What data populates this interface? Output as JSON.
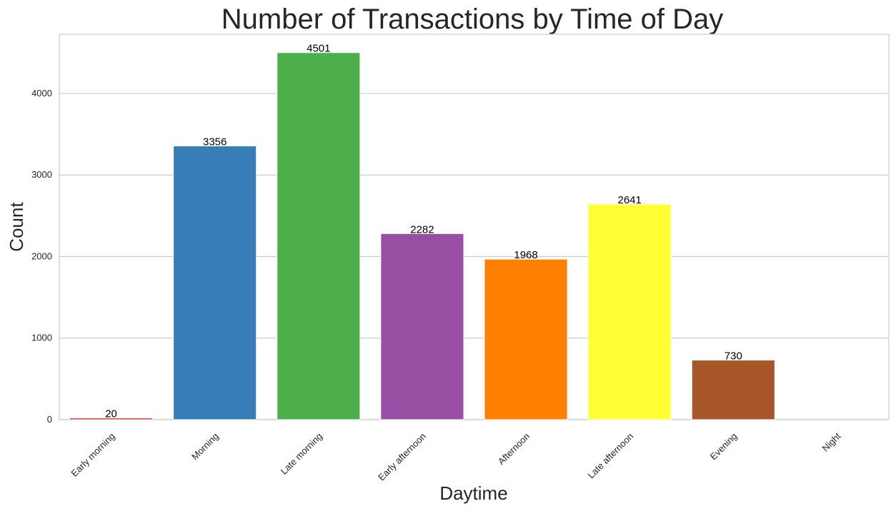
{
  "chart_data": {
    "type": "bar",
    "title": "Number of Transactions by Time of Day",
    "xlabel": "Daytime",
    "ylabel": "Count",
    "categories": [
      "Early morning",
      "Morning",
      "Late morning",
      "Early afternoon",
      "Afternoon",
      "Late afternoon",
      "Evening",
      "Night"
    ],
    "values": [
      20,
      3356,
      4501,
      2282,
      1968,
      2641,
      730,
      0
    ],
    "data_labels": [
      "20",
      "3356",
      "4501",
      "2282",
      "1968",
      "2641",
      "730",
      ""
    ],
    "colors": [
      "#e41a1c",
      "#377eb8",
      "#4daf4a",
      "#984ea3",
      "#ff7f00",
      "#ffff33",
      "#a65628",
      "#f781bf"
    ],
    "ylim": [
      0,
      4726
    ],
    "yticks": [
      0,
      1000,
      2000,
      3000,
      4000
    ],
    "grid": true,
    "style": {
      "grid_color": "#cccccc",
      "frame_color": "#cccccc",
      "text_color": "#262626"
    }
  }
}
